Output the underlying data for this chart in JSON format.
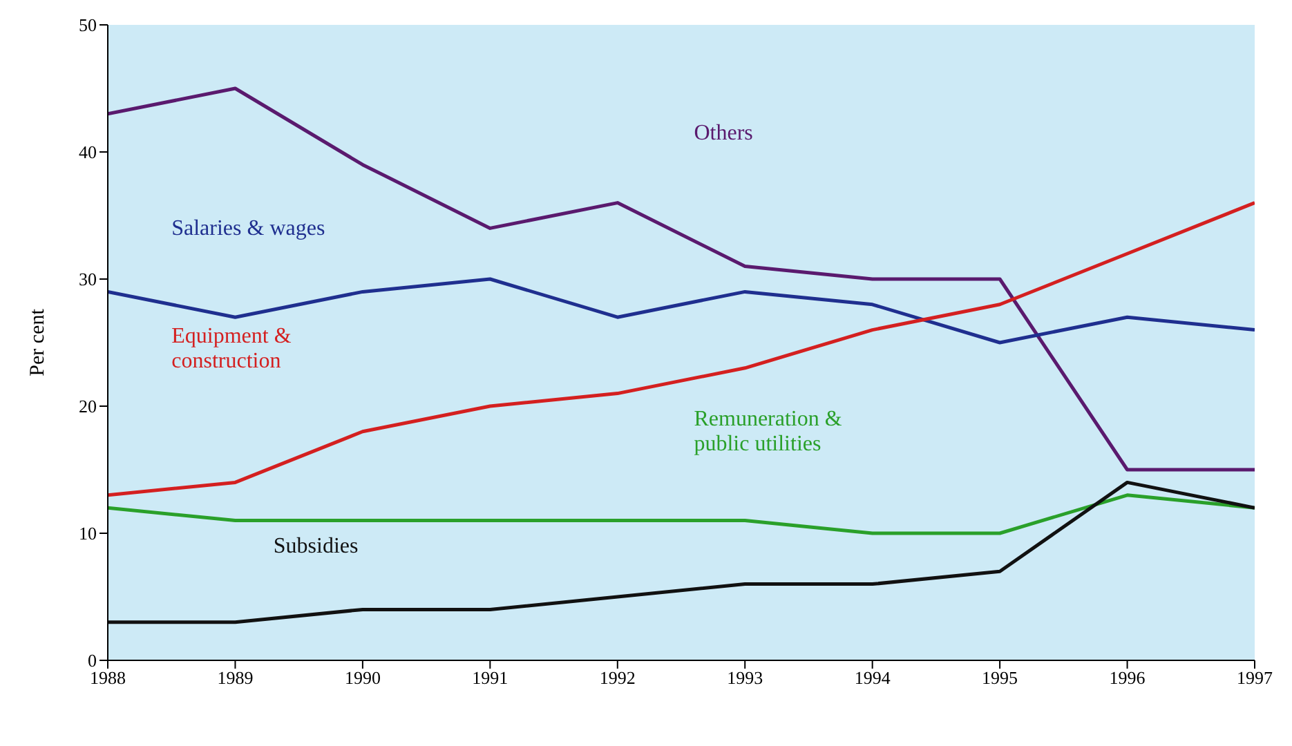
{
  "chart_data": {
    "type": "line",
    "ylabel": "Per cent",
    "x": [
      1988,
      1989,
      1990,
      1991,
      1992,
      1993,
      1994,
      1995,
      1996,
      1997
    ],
    "xlim": [
      1988,
      1997
    ],
    "xticks": [
      1988,
      1989,
      1990,
      1991,
      1992,
      1993,
      1994,
      1995,
      1996,
      1997
    ],
    "ylim": [
      0,
      50
    ],
    "yticks": [
      0,
      10,
      20,
      30,
      40,
      50
    ],
    "grid": false,
    "legend": false,
    "marker": "none",
    "line_style": "solid",
    "series": [
      {
        "name": "Others",
        "color": "#5a1a6e",
        "values": [
          43,
          45,
          39,
          34,
          36,
          31,
          30,
          30,
          15,
          15
        ]
      },
      {
        "name": "Salaries & wages",
        "color": "#1f2f8f",
        "values": [
          29,
          27,
          29,
          30,
          27,
          29,
          28,
          25,
          27,
          26
        ]
      },
      {
        "name": "Equipment & construction",
        "color": "#d42020",
        "values": [
          13,
          14,
          18,
          20,
          21,
          23,
          26,
          28,
          32,
          36
        ]
      },
      {
        "name": "Remuneration & public utilities",
        "color": "#2aa02a",
        "values": [
          12,
          11,
          11,
          11,
          11,
          11,
          10,
          10,
          13,
          12
        ]
      },
      {
        "name": "Subsidies",
        "color": "#111111",
        "values": [
          3,
          3,
          4,
          4,
          5,
          6,
          6,
          7,
          14,
          12
        ]
      }
    ]
  }
}
